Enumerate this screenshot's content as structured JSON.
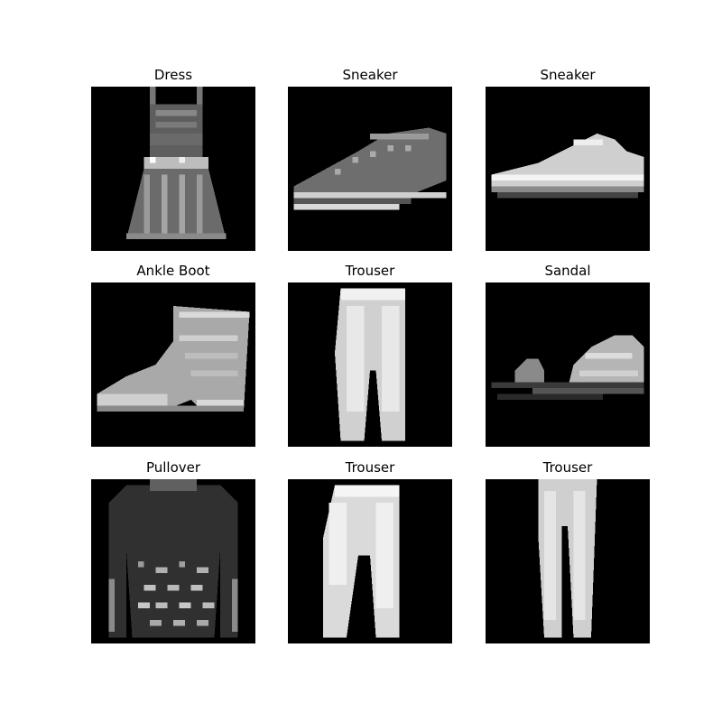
{
  "figure": {
    "panels": [
      {
        "label": "Dress",
        "icon": "dress-icon"
      },
      {
        "label": "Sneaker",
        "icon": "sneaker-icon"
      },
      {
        "label": "Sneaker",
        "icon": "sneaker-icon"
      },
      {
        "label": "Ankle Boot",
        "icon": "ankle-boot-icon"
      },
      {
        "label": "Trouser",
        "icon": "trouser-icon"
      },
      {
        "label": "Sandal",
        "icon": "sandal-icon"
      },
      {
        "label": "Pullover",
        "icon": "pullover-icon"
      },
      {
        "label": "Trouser",
        "icon": "trouser-icon"
      },
      {
        "label": "Trouser",
        "icon": "trouser-icon"
      }
    ]
  }
}
